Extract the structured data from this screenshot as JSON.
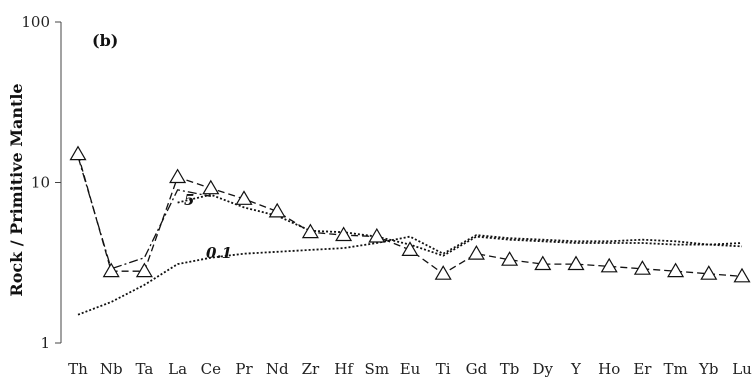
{
  "chart_data": {
    "type": "line",
    "title": "",
    "panel_label": "(b)",
    "xlabel": "",
    "ylabel": "Rock / Primitive Mantle",
    "y_scale": "log",
    "ylim": [
      1,
      100
    ],
    "y_ticks": [
      {
        "value": 1,
        "label": "1"
      },
      {
        "value": 10,
        "label": "10"
      },
      {
        "value": 100,
        "label": "100"
      }
    ],
    "categories": [
      "Th",
      "Nb",
      "Ta",
      "La",
      "Ce",
      "Pr",
      "Nd",
      "Zr",
      "Hf",
      "Sm",
      "Eu",
      "Ti",
      "Gd",
      "Tb",
      "Dy",
      "Y",
      "Ho",
      "Er",
      "Tm",
      "Yb",
      "Lu"
    ],
    "grid": false,
    "legend": false,
    "series": [
      {
        "style": "dash-triangle",
        "values": [
          15.0,
          2.8,
          2.8,
          10.8,
          9.2,
          7.9,
          6.6,
          4.9,
          4.7,
          4.6,
          3.8,
          2.7,
          3.6,
          3.3,
          3.1,
          3.1,
          3.0,
          2.9,
          2.8,
          2.7,
          2.6
        ]
      },
      {
        "style": "dash-dot",
        "values": [
          14.5,
          2.9,
          3.4,
          9.0,
          8.2,
          null,
          null,
          null,
          null,
          null,
          null,
          null,
          null,
          null,
          null,
          null,
          null,
          null,
          null,
          null,
          null
        ]
      },
      {
        "name": "5",
        "style": "dotted",
        "values": [
          null,
          null,
          null,
          7.5,
          8.4,
          7.0,
          6.2,
          5.0,
          4.9,
          4.6,
          4.1,
          3.5,
          4.6,
          4.4,
          4.3,
          4.2,
          4.2,
          4.2,
          4.1,
          4.1,
          4.0
        ]
      },
      {
        "name": "0.1",
        "style": "dotted",
        "values": [
          1.5,
          1.8,
          2.3,
          3.1,
          3.4,
          3.6,
          3.7,
          3.8,
          3.9,
          4.2,
          4.6,
          3.6,
          4.7,
          4.5,
          4.4,
          4.3,
          4.3,
          4.4,
          4.3,
          4.1,
          4.2
        ]
      }
    ],
    "annotations": [
      {
        "text": "5",
        "x": "Ce",
        "y": 7.5
      },
      {
        "text": "0.1",
        "x": "Ce",
        "y": 3.4
      }
    ]
  }
}
